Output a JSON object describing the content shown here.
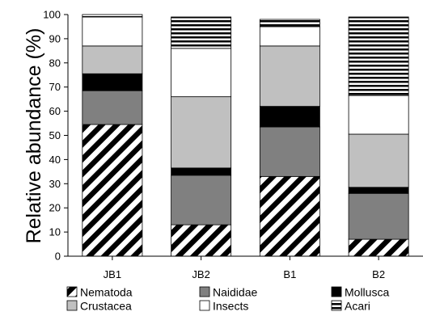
{
  "chart_data": {
    "type": "bar",
    "stacked": true,
    "ylabel": "Relative abundance (%)",
    "xlabel": "",
    "ylim": [
      0,
      100
    ],
    "yticks": [
      0,
      10,
      20,
      30,
      40,
      50,
      60,
      70,
      80,
      90,
      100
    ],
    "categories": [
      "JB1",
      "JB2",
      "B1",
      "B2"
    ],
    "series": [
      {
        "name": "Nematoda",
        "values": [
          54.5,
          13,
          33,
          7
        ],
        "pattern": "diagonal-stripes"
      },
      {
        "name": "Naididae",
        "values": [
          14,
          20.5,
          20.5,
          19
        ],
        "color": "#808080"
      },
      {
        "name": "Mollusca",
        "values": [
          7,
          3,
          8.5,
          2.5
        ],
        "color": "#000000"
      },
      {
        "name": "Crustacea",
        "values": [
          11.5,
          29.5,
          25,
          22
        ],
        "color": "#c0c0c0"
      },
      {
        "name": "Insects",
        "values": [
          12,
          20,
          8,
          16
        ],
        "color": "#ffffff"
      },
      {
        "name": "Acari",
        "values": [
          1,
          13,
          3,
          32.5
        ],
        "pattern": "horizontal-stripes"
      }
    ],
    "legend_position": "bottom",
    "grid": false
  }
}
